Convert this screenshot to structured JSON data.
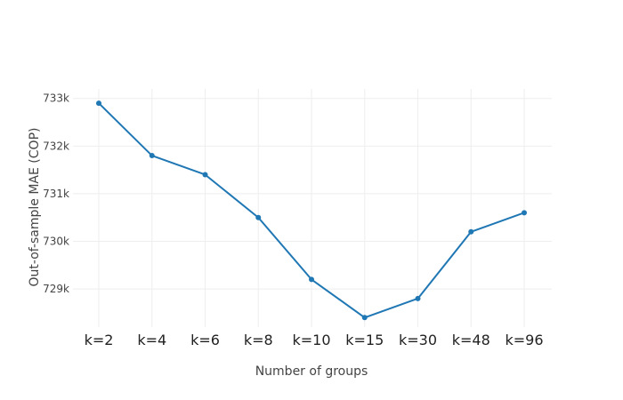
{
  "chart_data": {
    "type": "line",
    "categories": [
      "k=2",
      "k=4",
      "k=6",
      "k=8",
      "k=10",
      "k=15",
      "k=30",
      "k=48",
      "k=96"
    ],
    "series": [
      {
        "values": [
          732900,
          731800,
          731400,
          730500,
          729200,
          728400,
          728800,
          730200,
          730600
        ],
        "color": "#1f77b4"
      }
    ],
    "xlabel": "Number of groups",
    "ylabel": "Out-of-sample MAE (COP)",
    "ylim": [
      728200,
      733200
    ],
    "yticks": [
      729000,
      730000,
      731000,
      732000,
      733000
    ],
    "ytick_labels": [
      "729k",
      "730k",
      "731k",
      "732k",
      "733k"
    ],
    "grid": true
  }
}
